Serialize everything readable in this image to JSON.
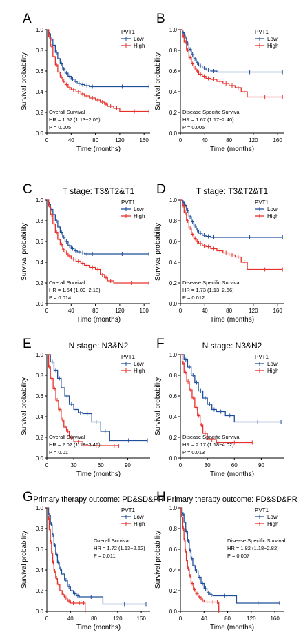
{
  "colors": {
    "low": "#1f4e9a",
    "high": "#e8302a",
    "axis": "#000000"
  },
  "chart_data": [
    {
      "type": "line",
      "panel_label": "A",
      "title": "",
      "xlabel": "Time (months)",
      "ylabel": "Survival probability",
      "xlim": [
        0,
        170
      ],
      "ylim": [
        0,
        1
      ],
      "xticks": [
        0,
        40,
        80,
        120,
        160
      ],
      "yticks": [
        0.0,
        0.2,
        0.4,
        0.6,
        0.8,
        1.0
      ],
      "legend": {
        "title": "PVT1",
        "placement": "top-right"
      },
      "annotation": [
        "Overall Survival",
        "HR = 1.52 (1.13−2.05)",
        "P = 0.005"
      ],
      "series": [
        {
          "name": "Low",
          "x": [
            0,
            3,
            6,
            10,
            14,
            18,
            22,
            26,
            30,
            35,
            40,
            45,
            50,
            56,
            62,
            70,
            80,
            168
          ],
          "y": [
            1.0,
            0.96,
            0.91,
            0.85,
            0.78,
            0.72,
            0.67,
            0.62,
            0.58,
            0.55,
            0.52,
            0.5,
            0.48,
            0.47,
            0.46,
            0.45,
            0.45,
            0.45
          ]
        },
        {
          "name": "High",
          "x": [
            0,
            3,
            6,
            10,
            14,
            18,
            22,
            26,
            30,
            35,
            40,
            48,
            56,
            62,
            70,
            80,
            88,
            95,
            100,
            110,
            120,
            168
          ],
          "y": [
            1.0,
            0.93,
            0.84,
            0.74,
            0.66,
            0.59,
            0.54,
            0.5,
            0.47,
            0.44,
            0.42,
            0.4,
            0.38,
            0.36,
            0.34,
            0.32,
            0.3,
            0.28,
            0.26,
            0.24,
            0.21,
            0.21
          ]
        }
      ]
    },
    {
      "type": "line",
      "panel_label": "B",
      "title": "",
      "xlabel": "Time (months)",
      "ylabel": "Survival probability",
      "xlim": [
        0,
        170
      ],
      "ylim": [
        0,
        1
      ],
      "xticks": [
        0,
        40,
        80,
        120,
        160
      ],
      "yticks": [
        0.0,
        0.2,
        0.4,
        0.6,
        0.8,
        1.0
      ],
      "legend": {
        "title": "PVT1",
        "placement": "top-right"
      },
      "annotation": [
        "Disease Specific Survival",
        "HR = 1.67 (1.17−2.40)",
        "P = 0.005"
      ],
      "series": [
        {
          "name": "Low",
          "x": [
            0,
            3,
            6,
            10,
            14,
            18,
            22,
            26,
            30,
            36,
            42,
            50,
            60,
            168
          ],
          "y": [
            1.0,
            0.97,
            0.93,
            0.87,
            0.81,
            0.76,
            0.72,
            0.68,
            0.65,
            0.63,
            0.61,
            0.6,
            0.59,
            0.59
          ]
        },
        {
          "name": "High",
          "x": [
            0,
            3,
            6,
            10,
            14,
            18,
            22,
            26,
            30,
            36,
            42,
            50,
            60,
            70,
            80,
            90,
            100,
            110,
            168
          ],
          "y": [
            1.0,
            0.94,
            0.88,
            0.8,
            0.73,
            0.67,
            0.63,
            0.6,
            0.57,
            0.55,
            0.53,
            0.52,
            0.5,
            0.48,
            0.46,
            0.44,
            0.4,
            0.35,
            0.35
          ]
        }
      ]
    },
    {
      "type": "line",
      "panel_label": "C",
      "title": "T stage: T3&T2&T1",
      "xlabel": "Time (months)",
      "ylabel": "Survival probability",
      "xlim": [
        0,
        170
      ],
      "ylim": [
        0,
        1
      ],
      "xticks": [
        0,
        40,
        80,
        120,
        160
      ],
      "yticks": [
        0.0,
        0.2,
        0.4,
        0.6,
        0.8,
        1.0
      ],
      "legend": {
        "title": "PVT1",
        "placement": "top-right"
      },
      "annotation": [
        "Overall Survival",
        "HR = 1.54 (1.09−2.18)",
        "P = 0.014"
      ],
      "series": [
        {
          "name": "Low",
          "x": [
            0,
            3,
            6,
            10,
            14,
            18,
            22,
            26,
            30,
            35,
            40,
            45,
            50,
            56,
            62,
            70,
            80,
            168
          ],
          "y": [
            1.0,
            0.96,
            0.91,
            0.86,
            0.8,
            0.74,
            0.69,
            0.64,
            0.6,
            0.56,
            0.53,
            0.51,
            0.5,
            0.49,
            0.48,
            0.48,
            0.48,
            0.48
          ]
        },
        {
          "name": "High",
          "x": [
            0,
            3,
            6,
            10,
            14,
            18,
            22,
            26,
            30,
            35,
            40,
            48,
            56,
            62,
            70,
            80,
            88,
            95,
            100,
            110,
            168
          ],
          "y": [
            1.0,
            0.94,
            0.86,
            0.77,
            0.69,
            0.62,
            0.57,
            0.52,
            0.49,
            0.46,
            0.43,
            0.41,
            0.39,
            0.37,
            0.35,
            0.33,
            0.28,
            0.25,
            0.22,
            0.2,
            0.2
          ]
        }
      ]
    },
    {
      "type": "line",
      "panel_label": "D",
      "title": "T stage: T3&T2&T1",
      "xlabel": "Time (months)",
      "ylabel": "Survival probability",
      "xlim": [
        0,
        170
      ],
      "ylim": [
        0,
        1
      ],
      "xticks": [
        0,
        40,
        80,
        120,
        160
      ],
      "yticks": [
        0.0,
        0.2,
        0.4,
        0.6,
        0.8,
        1.0
      ],
      "legend": {
        "title": "PVT1",
        "placement": "top-right"
      },
      "annotation": [
        "Disease Specific Survival",
        "HR = 1.73 (1.13−2.66)",
        "P = 0.012"
      ],
      "series": [
        {
          "name": "Low",
          "x": [
            0,
            3,
            6,
            10,
            14,
            18,
            22,
            26,
            30,
            36,
            42,
            50,
            60,
            168
          ],
          "y": [
            1.0,
            0.98,
            0.95,
            0.9,
            0.84,
            0.79,
            0.75,
            0.71,
            0.68,
            0.66,
            0.65,
            0.64,
            0.64,
            0.64
          ]
        },
        {
          "name": "High",
          "x": [
            0,
            3,
            6,
            10,
            14,
            18,
            22,
            26,
            30,
            36,
            42,
            50,
            60,
            70,
            80,
            90,
            100,
            110,
            168
          ],
          "y": [
            1.0,
            0.95,
            0.88,
            0.8,
            0.73,
            0.67,
            0.63,
            0.6,
            0.58,
            0.56,
            0.55,
            0.53,
            0.51,
            0.49,
            0.47,
            0.45,
            0.4,
            0.33,
            0.33
          ]
        }
      ]
    },
    {
      "type": "line",
      "panel_label": "E",
      "title": "N stage: N3&N2",
      "xlabel": "Time (months)",
      "ylabel": "Survival probability",
      "xlim": [
        0,
        115
      ],
      "ylim": [
        0,
        1
      ],
      "xticks": [
        0,
        30,
        60,
        90
      ],
      "yticks": [
        0.0,
        0.2,
        0.4,
        0.6,
        0.8,
        1.0
      ],
      "legend": {
        "title": "PVT1",
        "placement": "top-right"
      },
      "annotation": [
        "Overall Survival",
        "HR = 2.02 (1.18−3.45)",
        "P = 0.01"
      ],
      "series": [
        {
          "name": "Low",
          "x": [
            0,
            4,
            8,
            12,
            16,
            20,
            25,
            30,
            35,
            40,
            50,
            60,
            70,
            112
          ],
          "y": [
            1.0,
            0.93,
            0.85,
            0.77,
            0.68,
            0.6,
            0.52,
            0.47,
            0.44,
            0.43,
            0.35,
            0.26,
            0.17,
            0.17
          ]
        },
        {
          "name": "High",
          "x": [
            0,
            2,
            4,
            7,
            10,
            13,
            16,
            19,
            22,
            25,
            30,
            40,
            70,
            80
          ],
          "y": [
            1.0,
            0.88,
            0.77,
            0.67,
            0.56,
            0.47,
            0.37,
            0.3,
            0.26,
            0.2,
            0.16,
            0.12,
            0.12,
            0.12
          ]
        }
      ]
    },
    {
      "type": "line",
      "panel_label": "F",
      "title": "N stage: N3&N2",
      "xlabel": "Time (months)",
      "ylabel": "Survival probability",
      "xlim": [
        0,
        115
      ],
      "ylim": [
        0,
        1
      ],
      "xticks": [
        0,
        30,
        60,
        90
      ],
      "yticks": [
        0.0,
        0.2,
        0.4,
        0.6,
        0.8,
        1.0
      ],
      "legend": {
        "title": "PVT1",
        "placement": "top-right"
      },
      "annotation": [
        "Disease Specific Survival",
        "HR = 2.17 (1.18−4.02)",
        "P = 0.013"
      ],
      "series": [
        {
          "name": "Low",
          "x": [
            0,
            4,
            8,
            12,
            16,
            20,
            25,
            30,
            35,
            40,
            50,
            60,
            112
          ],
          "y": [
            1.0,
            0.95,
            0.88,
            0.8,
            0.73,
            0.65,
            0.58,
            0.52,
            0.47,
            0.45,
            0.41,
            0.35,
            0.35
          ]
        },
        {
          "name": "High",
          "x": [
            0,
            2,
            4,
            7,
            10,
            13,
            16,
            19,
            22,
            25,
            30,
            40,
            80
          ],
          "y": [
            1.0,
            0.92,
            0.83,
            0.74,
            0.66,
            0.58,
            0.49,
            0.41,
            0.32,
            0.24,
            0.18,
            0.15,
            0.15
          ]
        }
      ]
    },
    {
      "type": "line",
      "panel_label": "G",
      "title": "Primary therapy outcome: PD&SD&PR",
      "xlabel": "Time (months)",
      "ylabel": "Survival probability",
      "xlim": [
        0,
        175
      ],
      "ylim": [
        0,
        1
      ],
      "xticks": [
        0,
        40,
        80,
        120,
        160
      ],
      "yticks": [
        0.0,
        0.2,
        0.4,
        0.6,
        0.8,
        1.0
      ],
      "legend": {
        "title": "PVT1",
        "placement": "top-right"
      },
      "annotation": [
        "Overall Survival",
        "HR = 1.72 (1.13−2.62)",
        "P = 0.011"
      ],
      "series": [
        {
          "name": "Low",
          "x": [
            0,
            3,
            6,
            9,
            12,
            15,
            18,
            21,
            25,
            30,
            35,
            40,
            45,
            50,
            55,
            95,
            168
          ],
          "y": [
            1.0,
            0.93,
            0.84,
            0.74,
            0.64,
            0.55,
            0.47,
            0.41,
            0.36,
            0.3,
            0.24,
            0.2,
            0.17,
            0.15,
            0.14,
            0.07,
            0.07
          ]
        },
        {
          "name": "High",
          "x": [
            0,
            2,
            4,
            6,
            8,
            10,
            12,
            15,
            18,
            22,
            26,
            30,
            35,
            40,
            50,
            60,
            65
          ],
          "y": [
            1.0,
            0.9,
            0.79,
            0.67,
            0.56,
            0.47,
            0.39,
            0.32,
            0.26,
            0.2,
            0.16,
            0.13,
            0.1,
            0.08,
            0.08,
            0.08,
            0.0
          ]
        }
      ]
    },
    {
      "type": "line",
      "panel_label": "H",
      "title": "Primary therapy outcome: PD&SD&PR",
      "xlabel": "Time (months)",
      "ylabel": "Survival probability",
      "xlim": [
        0,
        175
      ],
      "ylim": [
        0,
        1
      ],
      "xticks": [
        0,
        40,
        80,
        120,
        160
      ],
      "yticks": [
        0.0,
        0.2,
        0.4,
        0.6,
        0.8,
        1.0
      ],
      "legend": {
        "title": "PVT1",
        "placement": "top-right"
      },
      "annotation": [
        "Disease Specific Survival",
        "HR = 1.82 (1.18−2.82)",
        "P = 0.007"
      ],
      "series": [
        {
          "name": "Low",
          "x": [
            0,
            3,
            6,
            9,
            12,
            15,
            18,
            21,
            25,
            30,
            35,
            40,
            45,
            50,
            55,
            95,
            168
          ],
          "y": [
            1.0,
            0.94,
            0.86,
            0.77,
            0.68,
            0.59,
            0.51,
            0.44,
            0.39,
            0.33,
            0.27,
            0.22,
            0.18,
            0.16,
            0.15,
            0.08,
            0.08
          ]
        },
        {
          "name": "High",
          "x": [
            0,
            2,
            4,
            6,
            8,
            10,
            12,
            15,
            18,
            22,
            26,
            30,
            35,
            40,
            50,
            60,
            65
          ],
          "y": [
            1.0,
            0.91,
            0.8,
            0.69,
            0.58,
            0.49,
            0.41,
            0.34,
            0.27,
            0.21,
            0.17,
            0.14,
            0.11,
            0.09,
            0.09,
            0.09,
            0.0
          ]
        }
      ]
    }
  ]
}
